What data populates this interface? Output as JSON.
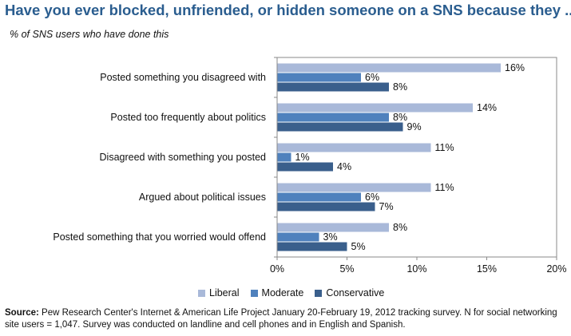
{
  "title": "Have you ever blocked, unfriended, or hidden someone on a SNS because they ...?",
  "subtitle": "% of SNS users who have done this",
  "source": {
    "label": "Source:",
    "text": "Pew Research Center's Internet & American Life Project January 20-February 19, 2012 tracking survey. N for social networking site users = 1,047. Survey was conducted on landline and cell phones and in English and Spanish."
  },
  "chart_data": {
    "type": "bar",
    "orientation": "horizontal",
    "categories": [
      "Posted something you disagreed with",
      "Posted too frequently about politics",
      "Disagreed with something you posted",
      "Argued about political issues",
      "Posted something that you worried would offend"
    ],
    "series": [
      {
        "name": "Liberal",
        "values": [
          16,
          14,
          11,
          11,
          8
        ],
        "labels": [
          "16%",
          "14%",
          "11%",
          "11%",
          "8%"
        ],
        "color": "#a9b9d9"
      },
      {
        "name": "Moderate",
        "values": [
          6,
          8,
          1,
          6,
          3
        ],
        "labels": [
          "6%",
          "8%",
          "1%",
          "6%",
          "3%"
        ],
        "color": "#4f81bd"
      },
      {
        "name": "Conservative",
        "values": [
          8,
          9,
          4,
          7,
          5
        ],
        "labels": [
          "8%",
          "9%",
          "4%",
          "7%",
          "5%"
        ],
        "color": "#3a5f8c"
      }
    ],
    "xlim": [
      0,
      20
    ],
    "ticks": [
      0,
      5,
      10,
      15,
      20
    ],
    "tick_labels": [
      "0%",
      "5%",
      "10%",
      "15%",
      "20%"
    ],
    "grid": false,
    "legend_position": "bottom"
  }
}
